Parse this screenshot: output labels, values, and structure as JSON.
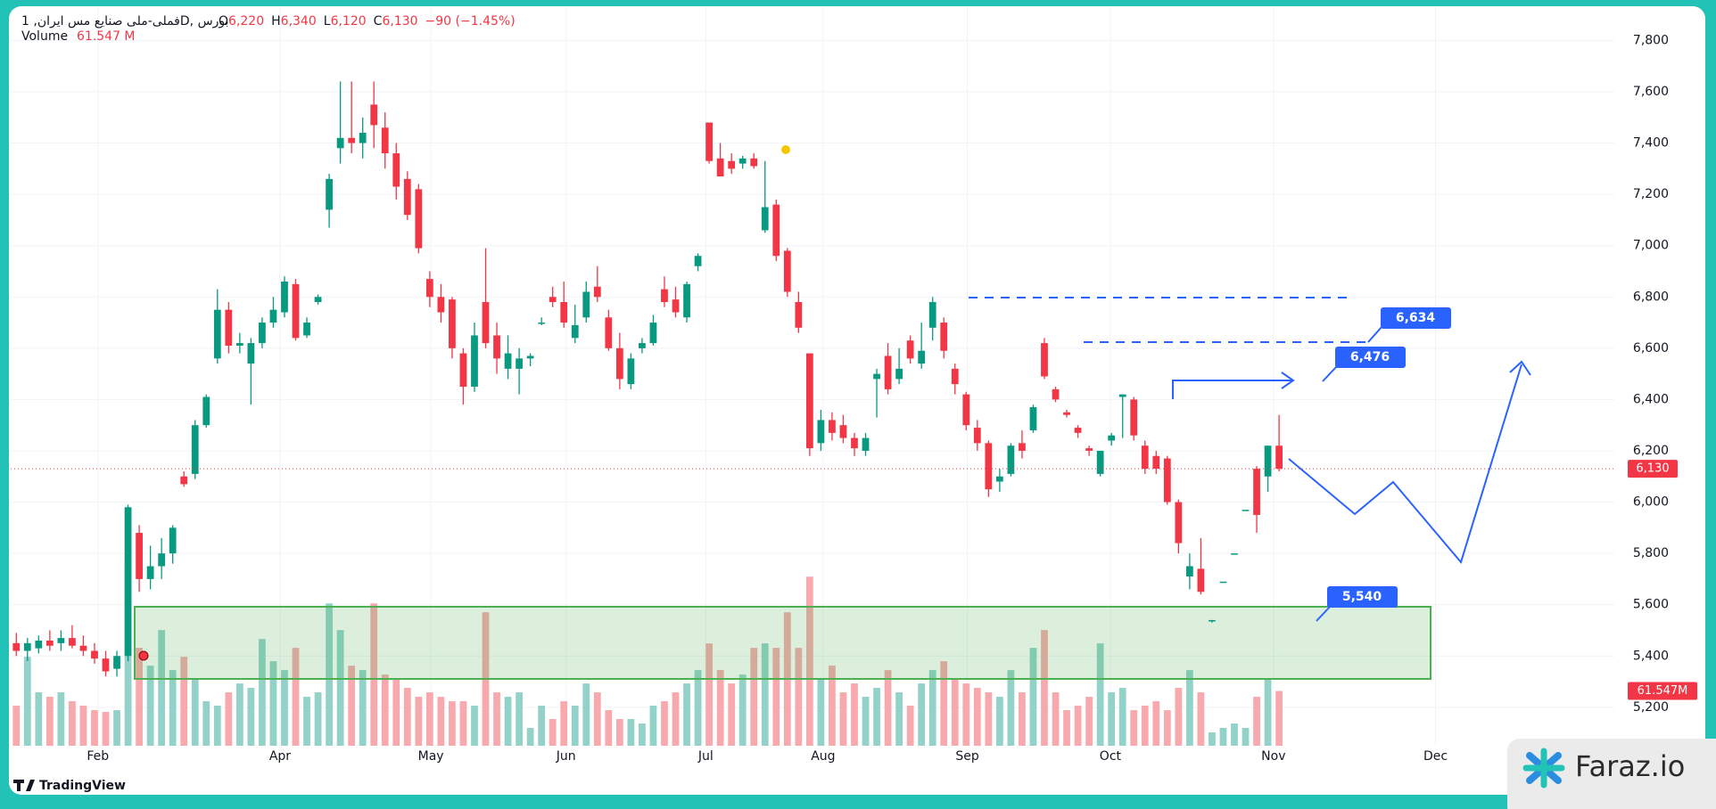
{
  "header": {
    "title": "فملی-ملی صنایع مس ایران, 1D, بورس",
    "ohlc": [
      {
        "key": "O",
        "value": "6,220"
      },
      {
        "key": "H",
        "value": "6,340"
      },
      {
        "key": "L",
        "value": "6,120"
      },
      {
        "key": "C",
        "value": "6,130"
      }
    ],
    "change": "−90 (−1.45%)",
    "volume_title": "Volume",
    "volume_value": "61.547 M"
  },
  "chart_data": {
    "type": "candlestick",
    "candles": [
      [
        5450,
        5490,
        5400,
        5420
      ],
      [
        5420,
        5470,
        5380,
        5450
      ],
      [
        5430,
        5480,
        5410,
        5460
      ],
      [
        5460,
        5500,
        5420,
        5440
      ],
      [
        5450,
        5500,
        5420,
        5470
      ],
      [
        5470,
        5520,
        5430,
        5440
      ],
      [
        5440,
        5480,
        5400,
        5420
      ],
      [
        5420,
        5450,
        5370,
        5390
      ],
      [
        5390,
        5420,
        5320,
        5340
      ],
      [
        5350,
        5420,
        5320,
        5400
      ],
      [
        5400,
        5990,
        5380,
        5980
      ],
      [
        5880,
        5910,
        5650,
        5700
      ],
      [
        5700,
        5830,
        5660,
        5750
      ],
      [
        5750,
        5860,
        5700,
        5800
      ],
      [
        5800,
        5910,
        5760,
        5900
      ],
      [
        6100,
        6120,
        6060,
        6070
      ],
      [
        6110,
        6320,
        6090,
        6300
      ],
      [
        6300,
        6420,
        6290,
        6410
      ],
      [
        6560,
        6830,
        6540,
        6750
      ],
      [
        6750,
        6780,
        6580,
        6610
      ],
      [
        6610,
        6660,
        6580,
        6620
      ],
      [
        6540,
        6640,
        6380,
        6620
      ],
      [
        6620,
        6720,
        6600,
        6700
      ],
      [
        6700,
        6800,
        6680,
        6750
      ],
      [
        6740,
        6880,
        6720,
        6860
      ],
      [
        6850,
        6870,
        6630,
        6640
      ],
      [
        6650,
        6720,
        6640,
        6700
      ],
      [
        6780,
        6810,
        6770,
        6800
      ],
      [
        7140,
        7280,
        7070,
        7260
      ],
      [
        7380,
        7640,
        7320,
        7420
      ],
      [
        7420,
        7640,
        7360,
        7400
      ],
      [
        7400,
        7500,
        7340,
        7440
      ],
      [
        7550,
        7640,
        7380,
        7470
      ],
      [
        7460,
        7520,
        7300,
        7360
      ],
      [
        7360,
        7400,
        7180,
        7230
      ],
      [
        7260,
        7290,
        7100,
        7120
      ],
      [
        7220,
        7240,
        6970,
        6990
      ],
      [
        6870,
        6900,
        6760,
        6800
      ],
      [
        6800,
        6850,
        6700,
        6740
      ],
      [
        6790,
        6800,
        6560,
        6600
      ],
      [
        6580,
        6600,
        6380,
        6450
      ],
      [
        6450,
        6700,
        6430,
        6650
      ],
      [
        6780,
        6990,
        6600,
        6620
      ],
      [
        6650,
        6700,
        6500,
        6560
      ],
      [
        6520,
        6650,
        6480,
        6580
      ],
      [
        6520,
        6600,
        6420,
        6560
      ],
      [
        6560,
        6580,
        6530,
        6570
      ],
      [
        6700,
        6720,
        6690,
        6700
      ],
      [
        6800,
        6840,
        6760,
        6780
      ],
      [
        6780,
        6860,
        6680,
        6700
      ],
      [
        6640,
        6770,
        6620,
        6690
      ],
      [
        6720,
        6860,
        6700,
        6820
      ],
      [
        6840,
        6920,
        6780,
        6800
      ],
      [
        6720,
        6750,
        6590,
        6600
      ],
      [
        6600,
        6660,
        6440,
        6480
      ],
      [
        6460,
        6580,
        6440,
        6560
      ],
      [
        6600,
        6640,
        6580,
        6620
      ],
      [
        6620,
        6730,
        6610,
        6700
      ],
      [
        6830,
        6880,
        6760,
        6780
      ],
      [
        6790,
        6840,
        6720,
        6740
      ],
      [
        6720,
        6860,
        6700,
        6850
      ],
      [
        6920,
        6970,
        6900,
        6960
      ],
      [
        7480,
        7480,
        7320,
        7330
      ],
      [
        7340,
        7400,
        7270,
        7270
      ],
      [
        7330,
        7360,
        7280,
        7300
      ],
      [
        7320,
        7350,
        7300,
        7340
      ],
      [
        7340,
        7360,
        7300,
        7310
      ],
      [
        7060,
        7330,
        7050,
        7150
      ],
      [
        7160,
        7180,
        6940,
        6960
      ],
      [
        6980,
        6990,
        6800,
        6820
      ],
      [
        6780,
        6820,
        6660,
        6680
      ],
      [
        6580,
        6580,
        6180,
        6210
      ],
      [
        6230,
        6360,
        6200,
        6320
      ],
      [
        6320,
        6350,
        6240,
        6270
      ],
      [
        6300,
        6340,
        6230,
        6250
      ],
      [
        6250,
        6270,
        6180,
        6210
      ],
      [
        6200,
        6270,
        6180,
        6250
      ],
      [
        6480,
        6520,
        6330,
        6500
      ],
      [
        6570,
        6620,
        6420,
        6440
      ],
      [
        6480,
        6600,
        6460,
        6520
      ],
      [
        6630,
        6650,
        6540,
        6560
      ],
      [
        6540,
        6700,
        6520,
        6590
      ],
      [
        6680,
        6800,
        6630,
        6780
      ],
      [
        6700,
        6720,
        6560,
        6590
      ],
      [
        6520,
        6540,
        6420,
        6460
      ],
      [
        6420,
        6430,
        6280,
        6300
      ],
      [
        6290,
        6320,
        6200,
        6230
      ],
      [
        6230,
        6240,
        6020,
        6050
      ],
      [
        6080,
        6130,
        6040,
        6100
      ],
      [
        6110,
        6230,
        6100,
        6220
      ],
      [
        6230,
        6280,
        6170,
        6200
      ],
      [
        6280,
        6380,
        6270,
        6370
      ],
      [
        6620,
        6640,
        6480,
        6490
      ],
      [
        6440,
        6450,
        6390,
        6400
      ],
      [
        6350,
        6360,
        6330,
        6340
      ],
      [
        6290,
        6300,
        6250,
        6270
      ],
      [
        6210,
        6220,
        6180,
        6200
      ],
      [
        6110,
        6200,
        6100,
        6200
      ],
      [
        6240,
        6270,
        6220,
        6260
      ],
      [
        6410,
        6420,
        6250,
        6420
      ],
      [
        6400,
        6410,
        6240,
        6260
      ],
      [
        6220,
        6240,
        6110,
        6130
      ],
      [
        6180,
        6200,
        6110,
        6130
      ],
      [
        6170,
        6180,
        5990,
        6000
      ],
      [
        6000,
        6010,
        5800,
        5840
      ],
      [
        5710,
        5800,
        5660,
        5750
      ],
      [
        5740,
        5860,
        5640,
        5650
      ],
      [
        5540,
        5540,
        5530,
        5540
      ],
      [
        5690,
        5690,
        5690,
        5690
      ],
      [
        5800,
        5800,
        5800,
        5800
      ],
      [
        5970,
        5970,
        5970,
        5970
      ],
      [
        6130,
        6140,
        5880,
        5950
      ],
      [
        6100,
        6220,
        6040,
        6220
      ],
      [
        6220,
        6340,
        6120,
        6130
      ]
    ],
    "volume": {
      "axis": "y2",
      "values": [
        45,
        100,
        60,
        55,
        60,
        50,
        45,
        40,
        38,
        40,
        200,
        110,
        90,
        130,
        85,
        100,
        75,
        50,
        45,
        60,
        70,
        65,
        120,
        95,
        85,
        110,
        55,
        60,
        160,
        130,
        90,
        85,
        160,
        80,
        75,
        65,
        55,
        60,
        55,
        50,
        50,
        45,
        150,
        60,
        55,
        60,
        20,
        45,
        30,
        50,
        45,
        70,
        60,
        40,
        30,
        30,
        25,
        45,
        50,
        60,
        70,
        85,
        115,
        85,
        70,
        80,
        110,
        115,
        110,
        150,
        110,
        190,
        75,
        90,
        60,
        70,
        55,
        65,
        85,
        60,
        45,
        70,
        85,
        95,
        75,
        70,
        65,
        60,
        55,
        85,
        60,
        110,
        130,
        60,
        40,
        45,
        55,
        115,
        60,
        65,
        40,
        45,
        50,
        40,
        65,
        85,
        60,
        15,
        20,
        25,
        20,
        55,
        75,
        61.547
      ]
    },
    "up_color": "#089981",
    "down_color": "#f23645",
    "volume_up_color": "#92d2c8",
    "volume_down_color": "#f8a9ad",
    "xlim": [
      -0.5,
      143
    ],
    "ylim": [
      5050,
      7930
    ],
    "y2lim": [
      0,
      830
    ],
    "xticks": [
      {
        "value": 7.3,
        "label": "Feb"
      },
      {
        "value": 23.6,
        "label": "Apr"
      },
      {
        "value": 37.1,
        "label": "May"
      },
      {
        "value": 49.2,
        "label": "Jun"
      },
      {
        "value": 61.7,
        "label": "Jul"
      },
      {
        "value": 72.2,
        "label": "Aug"
      },
      {
        "value": 85.1,
        "label": "Sep"
      },
      {
        "value": 97.9,
        "label": "Oct"
      },
      {
        "value": 112.5,
        "label": "Nov"
      },
      {
        "value": 127,
        "label": "Dec"
      }
    ],
    "yticks": [
      {
        "value": 5200,
        "label": "5,200"
      },
      {
        "value": 5400,
        "label": "5,400"
      },
      {
        "value": 5600,
        "label": "5,600"
      },
      {
        "value": 5800,
        "label": "5,800"
      },
      {
        "value": 6000,
        "label": "6,000"
      },
      {
        "value": 6200,
        "label": "6,200"
      },
      {
        "value": 6400,
        "label": "6,400"
      },
      {
        "value": 6600,
        "label": "6,600"
      },
      {
        "value": 6800,
        "label": "6,800"
      },
      {
        "value": 7000,
        "label": "7,000"
      },
      {
        "value": 7200,
        "label": "7,200"
      },
      {
        "value": 7400,
        "label": "7,400"
      },
      {
        "value": 7600,
        "label": "7,600"
      },
      {
        "value": 7800,
        "label": "7,800"
      }
    ],
    "grid": true,
    "price_label": "6,130",
    "volume_label": "61.547M"
  },
  "annotations": [
    {
      "label": "6,634"
    },
    {
      "label": "6,476"
    },
    {
      "label": "5,540"
    }
  ],
  "watermarks": {
    "tradingview": "TradingView",
    "brand": "Faraz.io"
  }
}
